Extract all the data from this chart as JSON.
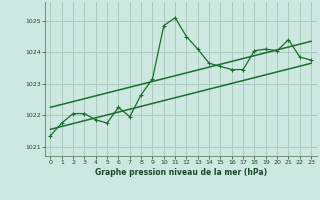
{
  "background_color": "#cce8e0",
  "grid_color": "#aaccbb",
  "line_color": "#1a6e2e",
  "xlabel": "Graphe pression niveau de la mer (hPa)",
  "xlim": [
    -0.5,
    23.5
  ],
  "ylim": [
    1020.7,
    1025.6
  ],
  "yticks": [
    1021,
    1022,
    1023,
    1024,
    1025
  ],
  "xticks": [
    0,
    1,
    2,
    3,
    4,
    5,
    6,
    7,
    8,
    9,
    10,
    11,
    12,
    13,
    14,
    15,
    16,
    17,
    18,
    19,
    20,
    21,
    22,
    23
  ],
  "series1_x": [
    0,
    1,
    2,
    3,
    4,
    5,
    6,
    7,
    8,
    9,
    10,
    11,
    12,
    13,
    14,
    15,
    16,
    17,
    18,
    19,
    20,
    21,
    22,
    23
  ],
  "series1_y": [
    1021.35,
    1021.75,
    1022.05,
    1022.05,
    1021.85,
    1021.75,
    1022.25,
    1021.95,
    1022.65,
    1023.15,
    1024.85,
    1025.1,
    1024.5,
    1024.1,
    1023.65,
    1023.55,
    1023.45,
    1023.45,
    1024.05,
    1024.1,
    1024.05,
    1024.4,
    1023.85,
    1023.75
  ],
  "series2_x": [
    0,
    23
  ],
  "series2_y": [
    1021.55,
    1023.65
  ],
  "series3_x": [
    0,
    23
  ],
  "series3_y": [
    1022.25,
    1024.35
  ],
  "marker": "+"
}
